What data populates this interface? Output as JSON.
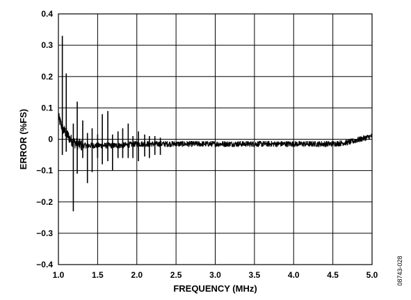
{
  "chart_data": {
    "type": "line",
    "title": "",
    "xlabel": "FREQUENCY (MHz)",
    "ylabel": "ERROR (%FS)",
    "xlim": [
      1.0,
      5.0
    ],
    "ylim": [
      -0.4,
      0.4
    ],
    "x_ticks": [
      1.0,
      1.5,
      2.0,
      2.5,
      3.0,
      3.5,
      4.0,
      4.5,
      5.0
    ],
    "x_tick_labels": [
      "1.0",
      "1.5",
      "2.0",
      "2.5",
      "3.0",
      "3.5",
      "4.0",
      "4.5",
      "5.0"
    ],
    "y_ticks": [
      0.4,
      0.3,
      0.2,
      0.1,
      0,
      -0.1,
      -0.2,
      -0.3,
      -0.4
    ],
    "y_tick_labels": [
      "0.4",
      "0.3",
      "0.2",
      "0.1",
      "0",
      "−0.1",
      "−0.2",
      "−0.3",
      "−0.4"
    ],
    "grid": true,
    "line_color": "#000000",
    "series": [
      {
        "x": [
          1.0,
          1.03,
          1.06,
          1.1,
          1.15,
          1.2,
          1.3,
          1.4,
          1.5,
          1.6,
          1.8,
          2.0,
          2.2,
          2.5,
          2.8,
          3.0,
          3.3,
          3.5,
          3.8,
          4.0,
          4.2,
          4.5,
          4.7,
          4.85,
          5.0
        ],
        "y": [
          0.07,
          0.05,
          0.03,
          0.02,
          0.0,
          -0.01,
          -0.02,
          -0.02,
          -0.02,
          -0.02,
          -0.02,
          -0.015,
          -0.015,
          -0.015,
          -0.015,
          -0.015,
          -0.015,
          -0.015,
          -0.015,
          -0.015,
          -0.015,
          -0.015,
          -0.01,
          0.0,
          0.01
        ]
      }
    ],
    "spikes": [
      {
        "x": 1.05,
        "top": 0.33,
        "bottom": -0.05
      },
      {
        "x": 1.1,
        "top": 0.21,
        "bottom": -0.04
      },
      {
        "x": 1.19,
        "top": 0.05,
        "bottom": -0.23
      },
      {
        "x": 1.24,
        "top": 0.12,
        "bottom": -0.11
      },
      {
        "x": 1.31,
        "top": 0.06,
        "bottom": -0.06
      },
      {
        "x": 1.37,
        "top": 0.02,
        "bottom": -0.14
      },
      {
        "x": 1.43,
        "top": 0.035,
        "bottom": -0.105
      },
      {
        "x": 1.5,
        "top": 0.015,
        "bottom": -0.06
      },
      {
        "x": 1.56,
        "top": 0.08,
        "bottom": -0.08
      },
      {
        "x": 1.63,
        "top": 0.09,
        "bottom": -0.07
      },
      {
        "x": 1.69,
        "top": 0.015,
        "bottom": -0.1
      },
      {
        "x": 1.76,
        "top": 0.025,
        "bottom": -0.06
      },
      {
        "x": 1.82,
        "top": 0.035,
        "bottom": -0.06
      },
      {
        "x": 1.89,
        "top": 0.05,
        "bottom": -0.06
      },
      {
        "x": 1.95,
        "top": 0.01,
        "bottom": -0.06
      },
      {
        "x": 2.02,
        "top": 0.025,
        "bottom": -0.07
      },
      {
        "x": 2.1,
        "top": 0.015,
        "bottom": -0.055
      },
      {
        "x": 2.16,
        "top": 0.01,
        "bottom": -0.06
      },
      {
        "x": 2.23,
        "top": 0.01,
        "bottom": -0.05
      },
      {
        "x": 2.3,
        "top": 0.005,
        "bottom": -0.05
      }
    ]
  },
  "figure_id": "08743-028"
}
